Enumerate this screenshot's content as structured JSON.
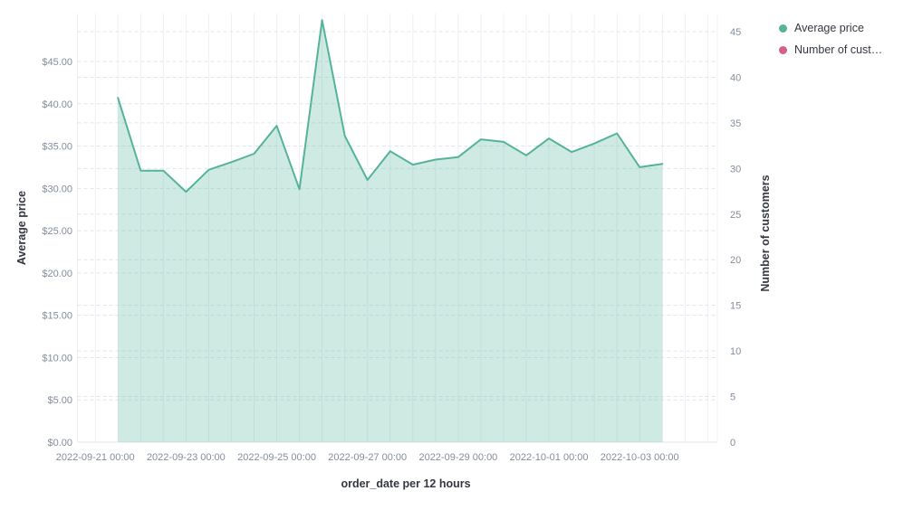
{
  "chart_data": {
    "type": "area",
    "title": "",
    "x_axis": {
      "title": "order_date per 12 hours",
      "tick_labels": [
        "2022-09-21 00:00",
        "2022-09-23 00:00",
        "2022-09-25 00:00",
        "2022-09-27 00:00",
        "2022-09-29 00:00",
        "2022-10-01 00:00",
        "2022-10-03 00:00"
      ],
      "interval": "12 hours"
    },
    "y_axis_left": {
      "title": "Average price",
      "tick_labels": [
        "$0.00",
        "$5.00",
        "$10.00",
        "$15.00",
        "$20.00",
        "$25.00",
        "$30.00",
        "$35.00",
        "$40.00",
        "$45.00"
      ],
      "tick_values": [
        0,
        5,
        10,
        15,
        20,
        25,
        30,
        35,
        40,
        45
      ],
      "range": [
        0,
        50.7
      ],
      "grid": "dashed"
    },
    "y_axis_right": {
      "title": "Number of customers",
      "tick_labels": [
        "0",
        "5",
        "10",
        "15",
        "20",
        "25",
        "30",
        "35",
        "40",
        "45"
      ],
      "tick_values": [
        0,
        5,
        10,
        15,
        20,
        25,
        30,
        35,
        40,
        45
      ],
      "range": [
        0,
        47
      ],
      "grid": "dashed"
    },
    "legend": {
      "position": "top-right",
      "items": [
        {
          "label": "Average price",
          "color": "#54b399"
        },
        {
          "label": "Number of cust…",
          "color": "#d36086"
        }
      ]
    },
    "series": [
      {
        "name": "Average price",
        "type": "area",
        "axis": "left",
        "color": "#54b399",
        "fill": "rgba(84,179,153,0.28)",
        "x": [
          "2022-09-21 12:00",
          "2022-09-22 00:00",
          "2022-09-22 12:00",
          "2022-09-23 00:00",
          "2022-09-23 12:00",
          "2022-09-24 00:00",
          "2022-09-24 12:00",
          "2022-09-25 00:00",
          "2022-09-25 12:00",
          "2022-09-26 00:00",
          "2022-09-26 12:00",
          "2022-09-27 00:00",
          "2022-09-27 12:00",
          "2022-09-28 00:00",
          "2022-09-28 12:00",
          "2022-09-29 00:00",
          "2022-09-29 12:00",
          "2022-09-30 00:00",
          "2022-09-30 12:00",
          "2022-10-01 00:00",
          "2022-10-01 12:00",
          "2022-10-02 00:00",
          "2022-10-02 12:00",
          "2022-10-03 00:00",
          "2022-10-03 12:00"
        ],
        "values": [
          40.7,
          32.1,
          32.1,
          29.6,
          32.2,
          33.1,
          34.1,
          37.4,
          29.9,
          49.9,
          36.2,
          31.0,
          34.4,
          32.8,
          33.4,
          33.7,
          35.8,
          35.5,
          33.9,
          35.9,
          34.3,
          35.3,
          36.5,
          32.5,
          32.9
        ]
      },
      {
        "name": "Number of customers",
        "axis": "right",
        "color": "#d36086",
        "visible": false,
        "values": []
      }
    ],
    "style": {
      "tick_label_color": "#848d9c",
      "axis_title_color": "#343741",
      "vertical_grid_color": "#edf0f5",
      "horizontal_grid_color": "#e1e6ee"
    }
  }
}
